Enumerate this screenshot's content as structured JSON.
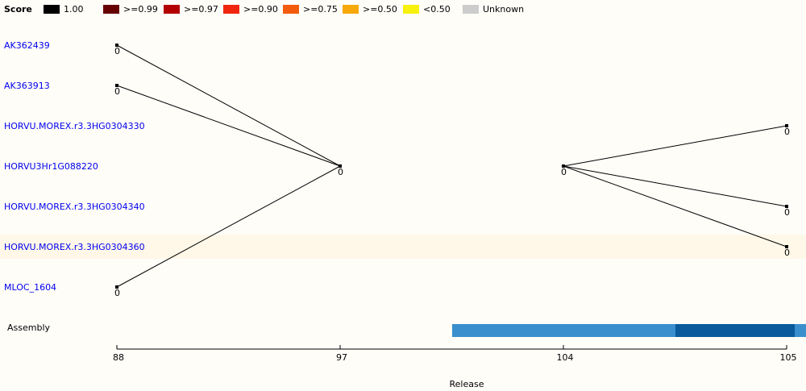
{
  "legend": {
    "title": "Score",
    "items": [
      {
        "label": "1.00",
        "color": "#000000"
      },
      {
        "label": ">=0.99",
        "color": "#660000"
      },
      {
        "label": ">=0.97",
        "color": "#b30000"
      },
      {
        "label": ">=0.90",
        "color": "#f0250d"
      },
      {
        "label": ">=0.75",
        "color": "#f35c0c"
      },
      {
        "label": ">=0.50",
        "color": "#f6a80c"
      },
      {
        "label": "<0.50",
        "color": "#f8f00d"
      },
      {
        "label": "Unknown",
        "color": "#cccccc"
      }
    ]
  },
  "genes": [
    "AK362439",
    "AK363913",
    "HORVU.MOREX.r3.3HG0304330",
    "HORVU3Hr1G088220",
    "HORVU.MOREX.r3.3HG0304340",
    "HORVU.MOREX.r3.3HG0304360",
    "MLOC_1604"
  ],
  "highlighted_gene": "HORVU.MOREX.r3.3HG0304360",
  "releases": [
    "88",
    "97",
    "104",
    "105"
  ],
  "axis_label": "Release",
  "assembly_label": "Assembly",
  "assembly_colors": {
    "light": "#3a8fcc",
    "dark": "#0a5a9c"
  },
  "nodes": [
    {
      "id": "n1",
      "gene": 0,
      "release": 0,
      "score": "0"
    },
    {
      "id": "n2",
      "gene": 1,
      "release": 0,
      "score": "0"
    },
    {
      "id": "n3",
      "gene": 6,
      "release": 0,
      "score": "0"
    },
    {
      "id": "n4",
      "gene": 3,
      "release": 1,
      "score": "0"
    },
    {
      "id": "n5",
      "gene": 3,
      "release": 2,
      "score": "0"
    },
    {
      "id": "n6",
      "gene": 2,
      "release": 3,
      "score": "0"
    },
    {
      "id": "n7",
      "gene": 4,
      "release": 3,
      "score": "0"
    },
    {
      "id": "n8",
      "gene": 5,
      "release": 3,
      "score": "0"
    }
  ],
  "edges": [
    [
      "n1",
      "n4"
    ],
    [
      "n2",
      "n4"
    ],
    [
      "n3",
      "n4"
    ],
    [
      "n5",
      "n6"
    ],
    [
      "n5",
      "n7"
    ],
    [
      "n5",
      "n8"
    ]
  ]
}
